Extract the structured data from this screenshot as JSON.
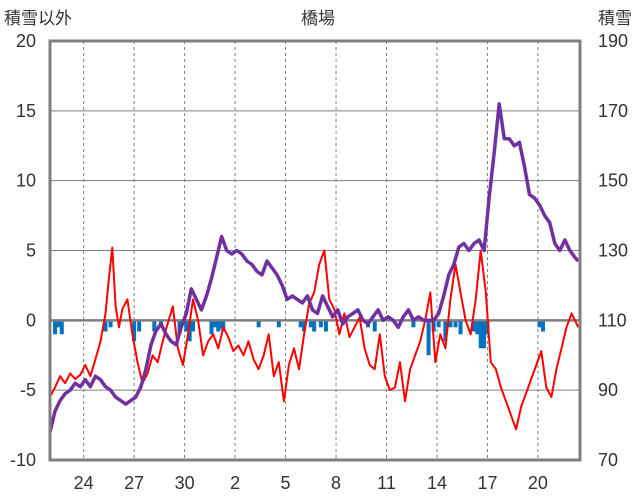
{
  "chart_data": {
    "type": "line",
    "title": "橋場",
    "left_axis_label": "積雪以外",
    "right_axis_label": "積雪",
    "left_axis": {
      "min": -10,
      "max": 20,
      "ticks": [
        20,
        15,
        10,
        5,
        0,
        -5,
        -10
      ]
    },
    "right_axis": {
      "min": 70,
      "max": 190,
      "ticks": [
        190,
        170,
        150,
        130,
        110,
        90,
        70
      ]
    },
    "x_tick_labels": [
      "24",
      "27",
      "30",
      "2",
      "5",
      "8",
      "11",
      "14",
      "17",
      "20"
    ],
    "x_range": [
      22,
      53.5
    ],
    "x_tick_positions": [
      24,
      27,
      30,
      33,
      36,
      39,
      42,
      45,
      48,
      51
    ],
    "grid": true,
    "colors": {
      "temperature": "#ff0000",
      "snow_depth": "#7030a0",
      "precipitation": "#0070c0",
      "zero_line": "#7f7f7f",
      "grid": "#7f7f7f",
      "frame": "#7f7f7f"
    },
    "series": [
      {
        "axis": "left",
        "x": [
          22.0,
          22.3,
          22.6,
          22.9,
          23.2,
          23.5,
          23.8,
          24.1,
          24.4,
          24.7,
          25.0,
          25.3,
          25.5,
          25.7,
          25.9,
          26.1,
          26.3,
          26.6,
          26.9,
          27.2,
          27.5,
          27.8,
          28.1,
          28.4,
          28.7,
          29.0,
          29.3,
          29.6,
          29.9,
          30.2,
          30.5,
          30.8,
          31.1,
          31.4,
          31.7,
          32.0,
          32.3,
          32.6,
          32.9,
          33.2,
          33.5,
          33.8,
          34.1,
          34.4,
          34.7,
          35.0,
          35.3,
          35.6,
          35.9,
          36.2,
          36.5,
          36.8,
          37.1,
          37.4,
          37.7,
          38.0,
          38.3,
          38.6,
          38.9,
          39.2,
          39.5,
          39.8,
          40.1,
          40.4,
          40.7,
          41.0,
          41.3,
          41.6,
          41.9,
          42.2,
          42.5,
          42.8,
          43.1,
          43.4,
          43.7,
          44.0,
          44.3,
          44.6,
          44.9,
          45.2,
          45.5,
          45.8,
          46.1,
          46.4,
          46.7,
          47.0,
          47.3,
          47.6,
          47.9,
          48.2,
          48.5,
          48.8,
          49.1,
          49.4,
          49.7,
          50.0,
          50.3,
          50.6,
          50.9,
          51.2,
          51.5,
          51.8,
          52.1,
          52.4,
          52.7,
          53.0,
          53.4
        ],
        "values": [
          -5.5,
          -4.8,
          -4.0,
          -4.5,
          -3.8,
          -4.2,
          -3.9,
          -3.2,
          -4.0,
          -2.8,
          -1.5,
          0.5,
          3.0,
          5.2,
          1.0,
          -0.5,
          0.8,
          1.5,
          -1.0,
          -3.0,
          -4.5,
          -3.8,
          -2.5,
          -3.0,
          -1.5,
          -0.2,
          1.0,
          -2.0,
          -3.2,
          -1.0,
          1.5,
          0.0,
          -2.5,
          -1.5,
          -1.0,
          -2.0,
          -0.5,
          -1.2,
          -2.2,
          -1.8,
          -2.5,
          -1.5,
          -2.8,
          -3.5,
          -2.5,
          -1.0,
          -4.0,
          -3.0,
          -5.8,
          -3.2,
          -2.0,
          -3.5,
          -1.0,
          1.2,
          2.0,
          4.0,
          5.0,
          1.5,
          0.8,
          -1.0,
          0.5,
          -1.2,
          -0.5,
          0.2,
          -2.0,
          -3.2,
          -3.5,
          -1.0,
          -4.0,
          -5.0,
          -4.8,
          -3.0,
          -5.8,
          -3.5,
          -2.5,
          -1.5,
          0.0,
          2.0,
          -3.0,
          -1.0,
          -2.0,
          1.5,
          4.0,
          2.0,
          0.0,
          -1.0,
          1.5,
          5.0,
          2.0,
          -3.0,
          -3.5,
          -4.8,
          -5.8,
          -6.8,
          -7.8,
          -6.2,
          -5.2,
          -4.2,
          -3.2,
          -2.2,
          -4.8,
          -5.5,
          -3.5,
          -2.0,
          -0.5,
          0.5,
          -0.5
        ]
      },
      {
        "axis": "right",
        "x": [
          22.0,
          22.3,
          22.6,
          22.9,
          23.2,
          23.5,
          23.8,
          24.1,
          24.4,
          24.7,
          25.0,
          25.3,
          25.6,
          25.9,
          26.2,
          26.5,
          26.8,
          27.1,
          27.4,
          27.7,
          28.0,
          28.3,
          28.6,
          28.9,
          29.2,
          29.5,
          29.8,
          30.1,
          30.4,
          30.7,
          31.0,
          31.3,
          31.6,
          31.9,
          32.2,
          32.5,
          32.8,
          33.1,
          33.4,
          33.7,
          34.0,
          34.3,
          34.6,
          34.9,
          35.2,
          35.5,
          35.8,
          36.1,
          36.4,
          36.7,
          37.0,
          37.3,
          37.6,
          37.9,
          38.2,
          38.5,
          38.8,
          39.1,
          39.4,
          39.7,
          40.0,
          40.3,
          40.6,
          40.9,
          41.2,
          41.5,
          41.8,
          42.1,
          42.4,
          42.7,
          43.0,
          43.3,
          43.6,
          43.9,
          44.2,
          44.5,
          44.8,
          45.1,
          45.4,
          45.7,
          46.0,
          46.3,
          46.6,
          46.9,
          47.2,
          47.5,
          47.8,
          48.1,
          48.4,
          48.7,
          49.0,
          49.3,
          49.6,
          49.9,
          50.2,
          50.5,
          50.8,
          51.1,
          51.4,
          51.7,
          52.0,
          52.3,
          52.6,
          52.9,
          53.2,
          53.4
        ],
        "values": [
          78,
          84,
          87,
          89,
          90,
          92,
          91,
          93,
          91,
          94,
          93,
          91,
          90,
          88,
          87,
          86,
          87,
          88,
          91,
          96,
          103,
          107,
          109,
          106,
          104,
          103,
          108,
          112,
          119,
          116,
          113,
          117,
          122,
          128,
          134,
          130,
          129,
          130,
          129,
          127,
          126,
          124,
          123,
          127,
          125,
          123,
          120,
          116,
          117,
          116,
          115,
          117,
          113,
          112,
          117,
          114,
          111,
          113,
          109,
          111,
          112,
          113,
          110,
          109,
          111,
          113,
          110,
          111,
          110,
          108,
          111,
          113,
          110,
          111,
          110,
          110,
          110,
          112,
          117,
          123,
          126,
          131,
          132,
          130,
          132,
          133,
          130,
          145,
          158,
          172,
          162,
          162,
          160,
          161,
          154,
          146,
          145,
          143,
          140,
          138,
          132,
          130,
          133,
          130,
          128,
          127
        ]
      },
      {
        "axis": "left",
        "type": "bar",
        "x": [
          22.3,
          22.5,
          22.7,
          25.3,
          25.6,
          27.0,
          27.3,
          28.2,
          28.6,
          29.7,
          30.1,
          30.3,
          30.5,
          31.6,
          31.8,
          32.0,
          32.1,
          32.3,
          34.4,
          35.6,
          36.9,
          37.1,
          37.5,
          37.7,
          38.1,
          38.4,
          40.9,
          41.3,
          43.6,
          44.5,
          44.8,
          45.1,
          45.5,
          45.8,
          46.1,
          46.4,
          47.2,
          47.4,
          47.6,
          47.8,
          48.0,
          51.1,
          51.3
        ],
        "values": [
          -1.0,
          -0.5,
          -1.0,
          -0.8,
          -0.5,
          -1.5,
          -0.8,
          -0.8,
          -0.5,
          -1.0,
          -0.8,
          -1.5,
          -0.8,
          -1.0,
          -0.5,
          -0.8,
          -0.6,
          -0.8,
          -0.5,
          -0.5,
          -0.5,
          -0.8,
          -0.5,
          -0.8,
          -0.5,
          -0.8,
          -0.5,
          -0.8,
          -0.5,
          -2.5,
          -0.8,
          -0.5,
          -1.5,
          -0.5,
          -0.5,
          -1.0,
          -0.8,
          -1.0,
          -2.0,
          -2.0,
          -1.0,
          -0.5,
          -0.8
        ]
      }
    ]
  }
}
